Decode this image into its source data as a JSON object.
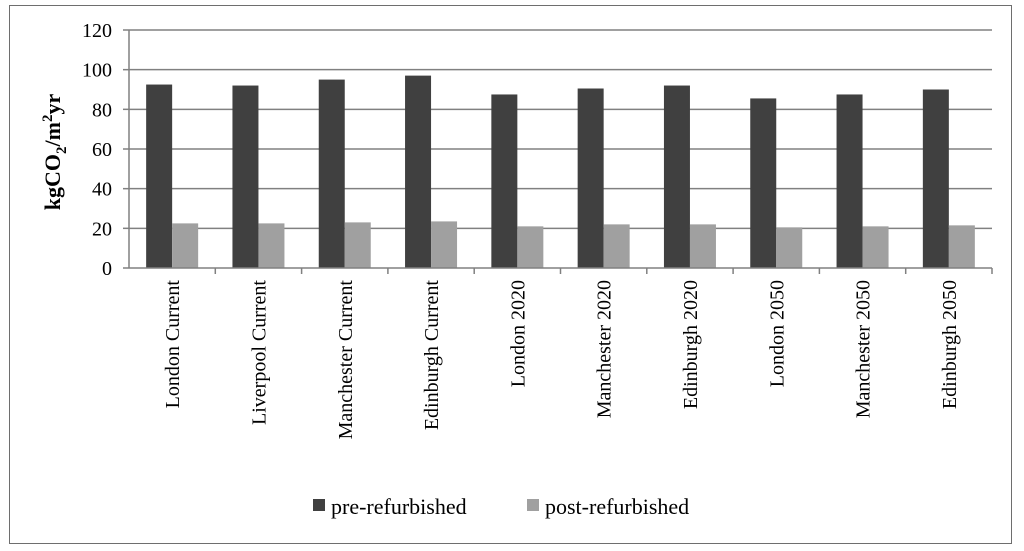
{
  "chart_data": {
    "type": "bar",
    "categories": [
      "London Current",
      "Liverpool Current",
      "Manchester Current",
      "Edinburgh Current",
      "London 2020",
      "Manchester 2020",
      "Edinburgh 2020",
      "London 2050",
      "Manchester 2050",
      "Edinburgh 2050"
    ],
    "series": [
      {
        "name": "pre-refurbished",
        "color": "#404040",
        "values": [
          92.5,
          92,
          95,
          97,
          87.5,
          90.5,
          92,
          85.5,
          87.5,
          90
        ]
      },
      {
        "name": "post-refurbished",
        "color": "#a0a0a0",
        "values": [
          22.5,
          22.5,
          23,
          23.5,
          21,
          22,
          22,
          20.5,
          21,
          21.5
        ]
      }
    ],
    "ylabel": {
      "main": "kgCO",
      "sub": "2",
      "mid": "/m",
      "sup": "2",
      "tail": "yr"
    },
    "ylim": [
      0,
      120
    ],
    "yticks": [
      0,
      20,
      40,
      60,
      80,
      100,
      120
    ],
    "grid": true,
    "legend_position": "bottom"
  }
}
